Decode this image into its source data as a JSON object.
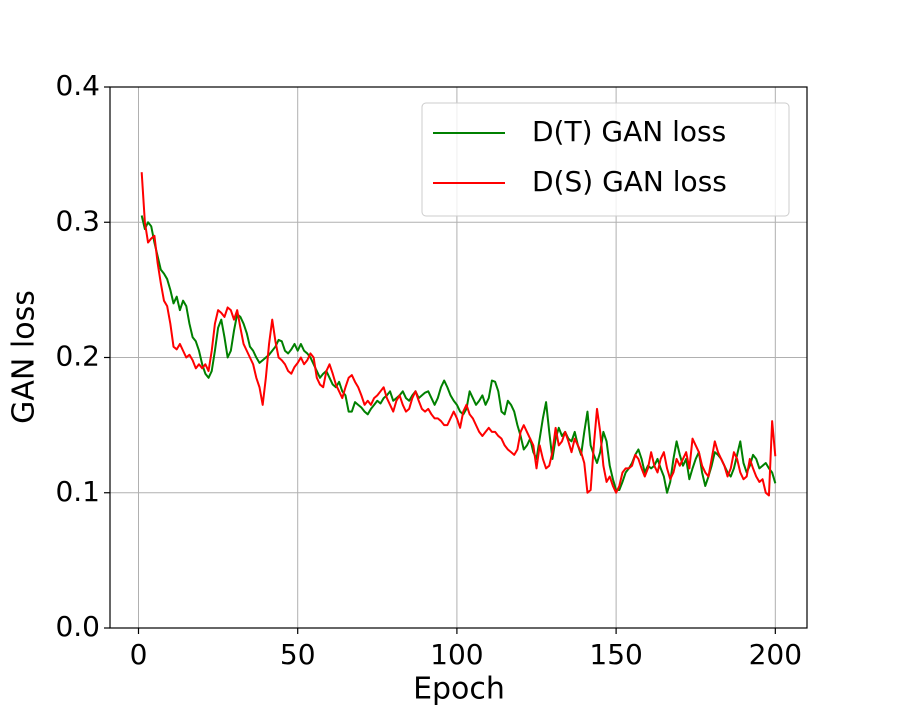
{
  "chart_data": {
    "type": "line",
    "x_label": "Epoch",
    "y_label": "GAN loss",
    "x": [
      1,
      2,
      3,
      4,
      5,
      6,
      7,
      8,
      9,
      10,
      11,
      12,
      13,
      14,
      15,
      16,
      17,
      18,
      19,
      20,
      21,
      22,
      23,
      24,
      25,
      26,
      27,
      28,
      29,
      30,
      31,
      32,
      33,
      34,
      35,
      36,
      37,
      38,
      39,
      40,
      41,
      42,
      43,
      44,
      45,
      46,
      47,
      48,
      49,
      50,
      51,
      52,
      53,
      54,
      55,
      56,
      57,
      58,
      59,
      60,
      61,
      62,
      63,
      64,
      65,
      66,
      67,
      68,
      69,
      70,
      71,
      72,
      73,
      74,
      75,
      76,
      77,
      78,
      79,
      80,
      81,
      82,
      83,
      84,
      85,
      86,
      87,
      88,
      89,
      90,
      91,
      92,
      93,
      94,
      95,
      96,
      97,
      98,
      99,
      100,
      101,
      102,
      103,
      104,
      105,
      106,
      107,
      108,
      109,
      110,
      111,
      112,
      113,
      114,
      115,
      116,
      117,
      118,
      119,
      120,
      121,
      122,
      123,
      124,
      125,
      126,
      127,
      128,
      129,
      130,
      131,
      132,
      133,
      134,
      135,
      136,
      137,
      138,
      139,
      140,
      141,
      142,
      143,
      144,
      145,
      146,
      147,
      148,
      149,
      150,
      151,
      152,
      153,
      154,
      155,
      156,
      157,
      158,
      159,
      160,
      161,
      162,
      163,
      164,
      165,
      166,
      167,
      168,
      169,
      170,
      171,
      172,
      173,
      174,
      175,
      176,
      177,
      178,
      179,
      180,
      181,
      182,
      183,
      184,
      185,
      186,
      187,
      188,
      189,
      190,
      191,
      192,
      193,
      194,
      195,
      196,
      197,
      198,
      199,
      200
    ],
    "series": [
      {
        "name": "D(T) GAN loss",
        "color": "#008000",
        "values": [
          0.305,
          0.295,
          0.3,
          0.297,
          0.285,
          0.275,
          0.265,
          0.262,
          0.258,
          0.25,
          0.24,
          0.245,
          0.235,
          0.242,
          0.238,
          0.225,
          0.215,
          0.212,
          0.205,
          0.195,
          0.188,
          0.185,
          0.19,
          0.205,
          0.222,
          0.228,
          0.215,
          0.2,
          0.205,
          0.22,
          0.232,
          0.23,
          0.225,
          0.218,
          0.208,
          0.205,
          0.2,
          0.196,
          0.198,
          0.2,
          0.202,
          0.205,
          0.208,
          0.213,
          0.212,
          0.205,
          0.203,
          0.206,
          0.21,
          0.205,
          0.21,
          0.205,
          0.203,
          0.2,
          0.195,
          0.19,
          0.185,
          0.188,
          0.19,
          0.185,
          0.18,
          0.178,
          0.182,
          0.175,
          0.172,
          0.16,
          0.16,
          0.167,
          0.165,
          0.163,
          0.16,
          0.158,
          0.162,
          0.165,
          0.168,
          0.166,
          0.17,
          0.172,
          0.175,
          0.168,
          0.17,
          0.172,
          0.175,
          0.17,
          0.168,
          0.172,
          0.175,
          0.17,
          0.172,
          0.174,
          0.175,
          0.17,
          0.165,
          0.17,
          0.178,
          0.183,
          0.178,
          0.172,
          0.168,
          0.165,
          0.16,
          0.158,
          0.162,
          0.175,
          0.17,
          0.165,
          0.168,
          0.172,
          0.165,
          0.17,
          0.183,
          0.182,
          0.175,
          0.16,
          0.158,
          0.168,
          0.165,
          0.16,
          0.15,
          0.142,
          0.132,
          0.135,
          0.14,
          0.13,
          0.125,
          0.14,
          0.155,
          0.167,
          0.145,
          0.125,
          0.14,
          0.148,
          0.142,
          0.145,
          0.14,
          0.138,
          0.145,
          0.135,
          0.128,
          0.145,
          0.16,
          0.135,
          0.128,
          0.122,
          0.13,
          0.145,
          0.138,
          0.12,
          0.11,
          0.102,
          0.102,
          0.108,
          0.115,
          0.118,
          0.122,
          0.128,
          0.132,
          0.125,
          0.115,
          0.12,
          0.118,
          0.12,
          0.125,
          0.118,
          0.112,
          0.1,
          0.108,
          0.125,
          0.138,
          0.128,
          0.12,
          0.125,
          0.11,
          0.118,
          0.125,
          0.13,
          0.115,
          0.105,
          0.112,
          0.12,
          0.13,
          0.128,
          0.125,
          0.12,
          0.115,
          0.112,
          0.118,
          0.128,
          0.138,
          0.122,
          0.115,
          0.12,
          0.128,
          0.125,
          0.118,
          0.12,
          0.122,
          0.118,
          0.115,
          0.107
        ]
      },
      {
        "name": "D(S) GAN loss",
        "color": "#ff0000",
        "values": [
          0.337,
          0.3,
          0.285,
          0.288,
          0.29,
          0.27,
          0.255,
          0.242,
          0.238,
          0.225,
          0.208,
          0.206,
          0.21,
          0.205,
          0.2,
          0.202,
          0.198,
          0.192,
          0.195,
          0.192,
          0.195,
          0.19,
          0.205,
          0.225,
          0.235,
          0.233,
          0.23,
          0.237,
          0.235,
          0.228,
          0.235,
          0.222,
          0.21,
          0.205,
          0.2,
          0.195,
          0.185,
          0.178,
          0.165,
          0.185,
          0.21,
          0.228,
          0.212,
          0.2,
          0.198,
          0.195,
          0.19,
          0.188,
          0.193,
          0.196,
          0.2,
          0.195,
          0.198,
          0.203,
          0.2,
          0.185,
          0.18,
          0.178,
          0.19,
          0.195,
          0.188,
          0.18,
          0.175,
          0.17,
          0.178,
          0.185,
          0.187,
          0.182,
          0.178,
          0.172,
          0.165,
          0.168,
          0.165,
          0.17,
          0.172,
          0.175,
          0.178,
          0.17,
          0.165,
          0.16,
          0.168,
          0.172,
          0.165,
          0.16,
          0.162,
          0.17,
          0.175,
          0.168,
          0.162,
          0.16,
          0.162,
          0.158,
          0.155,
          0.155,
          0.153,
          0.15,
          0.15,
          0.155,
          0.16,
          0.155,
          0.148,
          0.16,
          0.165,
          0.158,
          0.155,
          0.15,
          0.145,
          0.142,
          0.145,
          0.148,
          0.145,
          0.145,
          0.142,
          0.14,
          0.135,
          0.132,
          0.13,
          0.128,
          0.132,
          0.145,
          0.15,
          0.145,
          0.14,
          0.135,
          0.118,
          0.135,
          0.125,
          0.118,
          0.12,
          0.13,
          0.148,
          0.135,
          0.138,
          0.145,
          0.138,
          0.13,
          0.14,
          0.135,
          0.13,
          0.122,
          0.1,
          0.102,
          0.135,
          0.162,
          0.145,
          0.12,
          0.108,
          0.112,
          0.105,
          0.1,
          0.105,
          0.115,
          0.118,
          0.118,
          0.12,
          0.128,
          0.125,
          0.118,
          0.112,
          0.118,
          0.13,
          0.12,
          0.115,
          0.125,
          0.13,
          0.118,
          0.11,
          0.115,
          0.125,
          0.12,
          0.125,
          0.13,
          0.118,
          0.14,
          0.135,
          0.13,
          0.12,
          0.115,
          0.112,
          0.125,
          0.138,
          0.13,
          0.125,
          0.12,
          0.112,
          0.118,
          0.13,
          0.125,
          0.115,
          0.11,
          0.112,
          0.125,
          0.118,
          0.112,
          0.108,
          0.11,
          0.1,
          0.098,
          0.153,
          0.127
        ]
      }
    ],
    "xlim": [
      -8.95,
      209.95
    ],
    "xticks": [
      0,
      50,
      100,
      150,
      200
    ],
    "ylim": [
      0,
      0.4
    ],
    "yticks": [
      {
        "value": 0,
        "label": "0.0"
      },
      0.1,
      0.2,
      0.3,
      0.4
    ],
    "grid": true,
    "legend": "upper right"
  }
}
